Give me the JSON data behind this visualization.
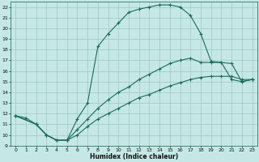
{
  "xlabel": "Humidex (Indice chaleur)",
  "xlim": [
    -0.5,
    23.5
  ],
  "ylim": [
    9,
    22.5
  ],
  "yticks": [
    9,
    10,
    11,
    12,
    13,
    14,
    15,
    16,
    17,
    18,
    19,
    20,
    21,
    22
  ],
  "xticks": [
    0,
    1,
    2,
    3,
    4,
    5,
    6,
    7,
    8,
    9,
    10,
    11,
    12,
    13,
    14,
    15,
    16,
    17,
    18,
    19,
    20,
    21,
    22,
    23
  ],
  "bg_color": "#c5e8e6",
  "line_color": "#1a6b5a",
  "grid_color": "#9ec8c4",
  "curve1_x": [
    0,
    1,
    2,
    3,
    4,
    5,
    6,
    7,
    8,
    9,
    10,
    11,
    12,
    13,
    14,
    15,
    16,
    17,
    18,
    19,
    20,
    21,
    22,
    23
  ],
  "curve1_y": [
    11.8,
    11.6,
    11.0,
    10.0,
    9.5,
    9.5,
    11.5,
    13.0,
    18.3,
    19.5,
    20.5,
    21.5,
    21.8,
    22.0,
    22.2,
    22.2,
    22.0,
    21.2,
    19.5,
    16.9,
    16.8,
    15.2,
    15.0,
    15.2
  ],
  "curve2_x": [
    0,
    2,
    3,
    4,
    5,
    6,
    7,
    8,
    9,
    10,
    11,
    12,
    13,
    14,
    15,
    16,
    17,
    18,
    19,
    20,
    21,
    22,
    23
  ],
  "curve2_y": [
    11.8,
    11.0,
    10.0,
    9.5,
    9.5,
    10.5,
    11.5,
    12.5,
    13.3,
    14.0,
    14.5,
    15.2,
    15.7,
    16.2,
    16.7,
    17.0,
    17.2,
    16.8,
    16.8,
    16.8,
    16.7,
    15.0,
    15.2
  ],
  "curve3_x": [
    0,
    2,
    3,
    4,
    5,
    6,
    7,
    8,
    9,
    10,
    11,
    12,
    13,
    14,
    15,
    16,
    17,
    18,
    19,
    20,
    21,
    22,
    23
  ],
  "curve3_y": [
    11.8,
    11.0,
    10.0,
    9.5,
    9.5,
    10.0,
    10.8,
    11.5,
    12.0,
    12.5,
    13.0,
    13.5,
    13.8,
    14.2,
    14.6,
    14.9,
    15.2,
    15.4,
    15.5,
    15.5,
    15.5,
    15.2,
    15.2
  ]
}
